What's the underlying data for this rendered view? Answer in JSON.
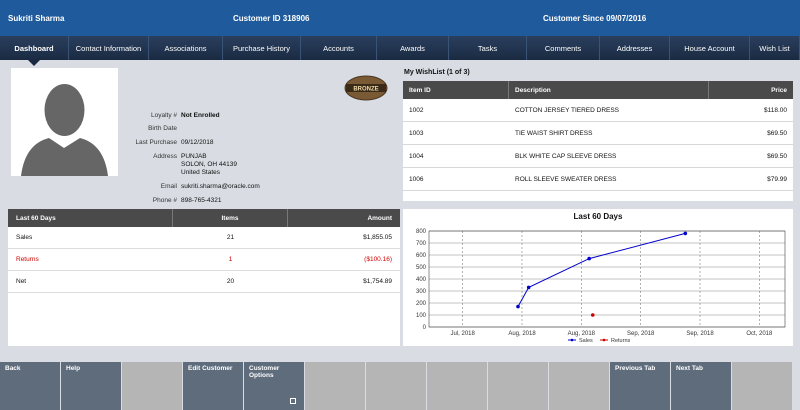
{
  "header": {
    "customer_name": "Sukriti Sharma",
    "customer_id": "Customer ID 318906",
    "customer_since": "Customer Since 09/07/2016"
  },
  "tabs": [
    "Dashboard",
    "Contact Information",
    "Associations",
    "Purchase History",
    "Accounts",
    "Awards",
    "Tasks",
    "Comments",
    "Addresses",
    "House Account",
    "Wish List"
  ],
  "profile": {
    "badge_text": "BRONZE",
    "fields": [
      {
        "label": "Loyalty #",
        "value": "Not Enrolled",
        "bold": true
      },
      {
        "label": "Birth Date",
        "value": ""
      },
      {
        "label": "Last Purchase",
        "value": "09/12/2018"
      },
      {
        "label": "Address",
        "value": "PUNJAB"
      },
      {
        "label": "",
        "value": "SOLON, OH 44139"
      },
      {
        "label": "",
        "value": "United States"
      },
      {
        "label": "Email",
        "value": "sukriti.sharma@oracle.com"
      },
      {
        "label": "Phone #",
        "value": "898-765-4321"
      }
    ]
  },
  "wishlist": {
    "title": "My WishList (1 of 3)",
    "columns": [
      "Item ID",
      "Description",
      "Price"
    ],
    "rows": [
      {
        "id": "1002",
        "desc": "COTTON JERSEY TIERED DRESS",
        "price": "$118.00"
      },
      {
        "id": "1003",
        "desc": "TIE WAIST SHIRT DRESS",
        "price": "$69.50"
      },
      {
        "id": "1004",
        "desc": "BLK WHITE CAP SLEEVE DRESS",
        "price": "$69.50"
      },
      {
        "id": "1006",
        "desc": "ROLL SLEEVE SWEATER DRESS",
        "price": "$79.99"
      }
    ]
  },
  "stats": {
    "columns": [
      "Last 60 Days",
      "Items",
      "Amount"
    ],
    "rows": [
      {
        "label": "Sales",
        "items": "21",
        "amount": "$1,855.05",
        "red": false
      },
      {
        "label": "Returns",
        "items": "1",
        "amount": "($100.16)",
        "red": true
      },
      {
        "label": "Net",
        "items": "20",
        "amount": "$1,754.89",
        "red": false
      }
    ]
  },
  "chart_data": {
    "type": "line",
    "title": "Last 60 Days",
    "x_ticks": [
      "Jul, 2018",
      "Aug, 2018",
      "Aug, 2018",
      "Sep, 2018",
      "Sep, 2018",
      "Oct, 2018"
    ],
    "y_ticks": [
      "0",
      "100",
      "200",
      "300",
      "400",
      "500",
      "600",
      "700",
      "800"
    ],
    "ylim": [
      0,
      800
    ],
    "series": [
      {
        "name": "Sales",
        "color": "#0000cc",
        "points": [
          [
            0.25,
            170
          ],
          [
            0.28,
            330
          ],
          [
            0.45,
            570
          ],
          [
            0.72,
            780
          ]
        ]
      },
      {
        "name": "Returns",
        "color": "#cc0000",
        "points": [
          [
            0.46,
            100
          ]
        ]
      }
    ],
    "legend": "bottom"
  },
  "buttons": [
    {
      "label": "Back",
      "enabled": true
    },
    {
      "label": "Help",
      "enabled": true
    },
    {
      "label": "",
      "enabled": false
    },
    {
      "label": "Edit Customer",
      "enabled": true
    },
    {
      "label": "Customer Options",
      "enabled": true,
      "dropdown": true
    },
    {
      "label": "",
      "enabled": false
    },
    {
      "label": "",
      "enabled": false
    },
    {
      "label": "",
      "enabled": false
    },
    {
      "label": "",
      "enabled": false
    },
    {
      "label": "",
      "enabled": false
    },
    {
      "label": "Previous Tab",
      "enabled": true
    },
    {
      "label": "Next Tab",
      "enabled": true
    },
    {
      "label": "",
      "enabled": false
    }
  ]
}
